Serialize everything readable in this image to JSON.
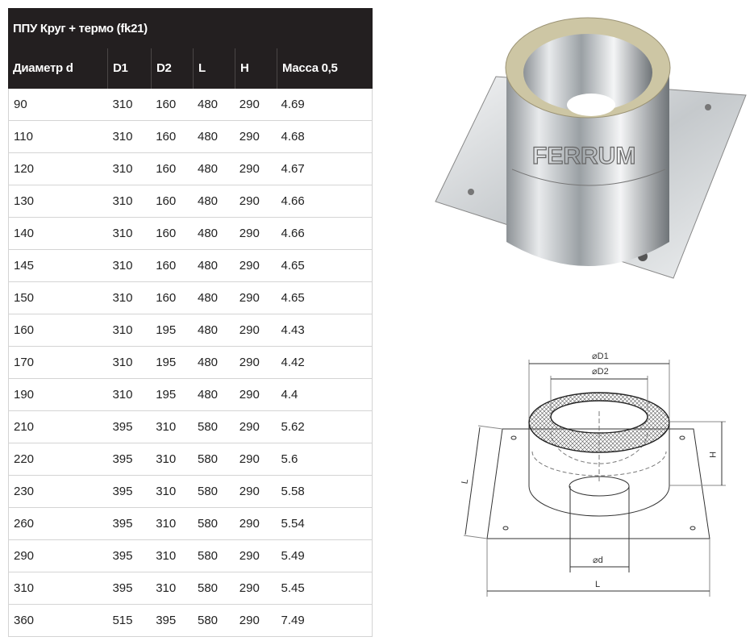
{
  "table": {
    "title": "ППУ Круг + термо (fk21)",
    "columns": [
      "Диаметр d",
      "D1",
      "D2",
      "L",
      "H",
      "Масса 0,5"
    ],
    "rows": [
      [
        "90",
        "310",
        "160",
        "480",
        "290",
        "4.69"
      ],
      [
        "110",
        "310",
        "160",
        "480",
        "290",
        "4.68"
      ],
      [
        "120",
        "310",
        "160",
        "480",
        "290",
        "4.67"
      ],
      [
        "130",
        "310",
        "160",
        "480",
        "290",
        "4.66"
      ],
      [
        "140",
        "310",
        "160",
        "480",
        "290",
        "4.66"
      ],
      [
        "145",
        "310",
        "160",
        "480",
        "290",
        "4.65"
      ],
      [
        "150",
        "310",
        "160",
        "480",
        "290",
        "4.65"
      ],
      [
        "160",
        "310",
        "195",
        "480",
        "290",
        "4.43"
      ],
      [
        "170",
        "310",
        "195",
        "480",
        "290",
        "4.42"
      ],
      [
        "190",
        "310",
        "195",
        "480",
        "290",
        "4.4"
      ],
      [
        "210",
        "395",
        "310",
        "580",
        "290",
        "5.62"
      ],
      [
        "220",
        "395",
        "310",
        "580",
        "290",
        "5.6"
      ],
      [
        "230",
        "395",
        "310",
        "580",
        "290",
        "5.58"
      ],
      [
        "260",
        "395",
        "310",
        "580",
        "290",
        "5.54"
      ],
      [
        "290",
        "395",
        "310",
        "580",
        "290",
        "5.49"
      ],
      [
        "310",
        "395",
        "310",
        "580",
        "290",
        "5.45"
      ],
      [
        "360",
        "515",
        "395",
        "580",
        "290",
        "7.49"
      ]
    ]
  },
  "photo": {
    "watermark": "FERRUM"
  },
  "drawing": {
    "d1": "⌀D1",
    "d2": "⌀D2",
    "d": "⌀d",
    "h": "H",
    "l": "L"
  },
  "colors": {
    "header_bg": "#231f20",
    "insulation": "#cdc6a4"
  }
}
